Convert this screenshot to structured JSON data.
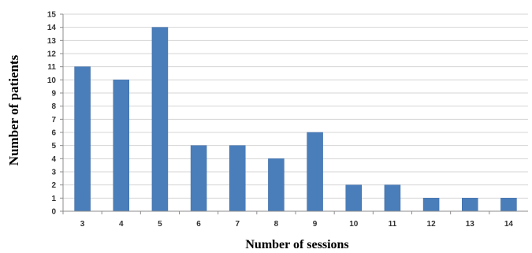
{
  "chart_data": {
    "type": "bar",
    "title": "",
    "xlabel": "Number of sessions",
    "ylabel": "Number of patients",
    "categories": [
      "3",
      "4",
      "5",
      "6",
      "7",
      "8",
      "9",
      "10",
      "11",
      "12",
      "13",
      "14"
    ],
    "values": [
      11,
      10,
      14,
      5,
      5,
      4,
      6,
      2,
      2,
      1,
      1,
      1
    ],
    "ylim": [
      0,
      15
    ],
    "yticks": [
      "0",
      "1",
      "2",
      "3",
      "4",
      "5",
      "6",
      "7",
      "8",
      "9",
      "10",
      "11",
      "12",
      "13",
      "14",
      "15"
    ],
    "grid": true,
    "legend": "none",
    "colors": {
      "bar": "#4a7ebb",
      "bar_edge": "#3c6aa3",
      "grid": "#d4d4d4",
      "axis": "#8c8c8c"
    }
  }
}
